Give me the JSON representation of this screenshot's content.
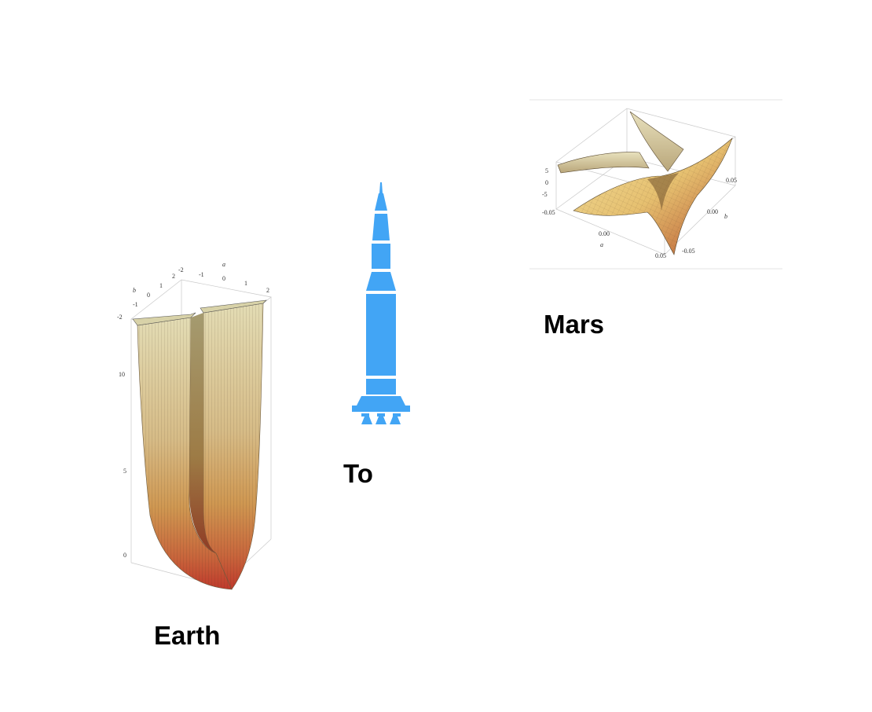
{
  "captions": {
    "earth": "Earth",
    "to": "To",
    "mars": "Mars"
  },
  "earth_plot": {
    "a_axis_label": "a",
    "b_axis_label": "b",
    "a_ticks": [
      "-2",
      "-1",
      "0",
      "1",
      "2"
    ],
    "b_ticks": [
      "2",
      "1",
      "0",
      "-1",
      "-2"
    ],
    "z_ticks": [
      "10",
      "5",
      "0"
    ]
  },
  "mars_plot": {
    "a_axis_label": "a",
    "b_axis_label": "b",
    "a_ticks": [
      "-0.05",
      "0.00",
      "0.05"
    ],
    "b_ticks": [
      "0.05",
      "0.00",
      "-0.05"
    ],
    "z_ticks": [
      "5",
      "0",
      "-5"
    ]
  },
  "colors": {
    "rocket": "#42a5f5",
    "surface_top": "#e6dcae",
    "surface_mid": "#d29a55",
    "surface_low": "#c0432e",
    "caption": "#000000"
  },
  "icons": {
    "rocket": "rocket-icon"
  }
}
